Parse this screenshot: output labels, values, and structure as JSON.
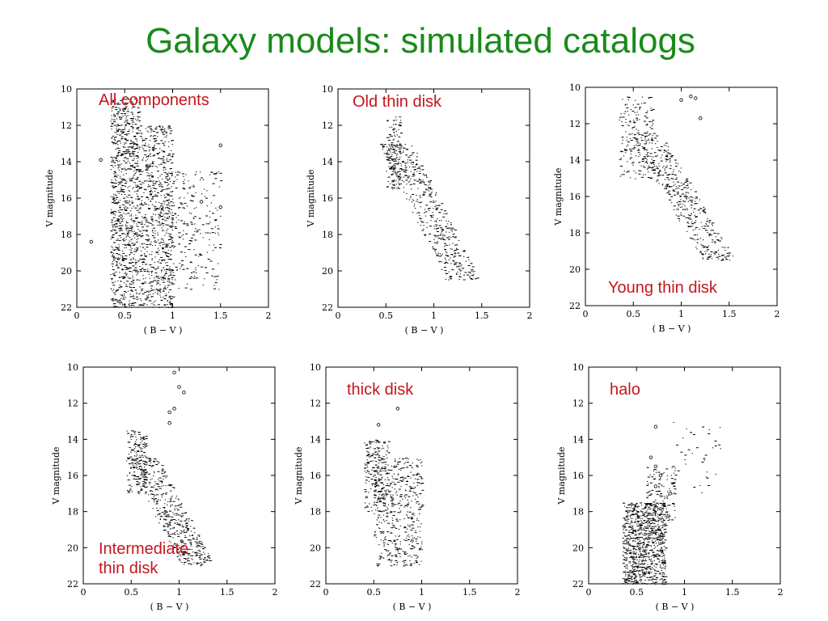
{
  "slide": {
    "title": "Galaxy models: simulated catalogs"
  },
  "colors": {
    "title": "#1a8a1a",
    "panel_label": "#c4161c",
    "marks": "#000000"
  },
  "chart_data": [
    {
      "type": "scatter",
      "label": "All components",
      "xlabel": "( B − V )",
      "ylabel": "V    magnitude",
      "xlim": [
        0,
        2
      ],
      "ylim": [
        22,
        10
      ],
      "xticks": [
        "0",
        "0.5",
        "1",
        "1.5",
        "2"
      ],
      "yticks": [
        "10",
        "12",
        "14",
        "16",
        "18",
        "20",
        "22"
      ],
      "grid": false,
      "clusters": [
        {
          "x": [
            0.35,
            0.65
          ],
          "y": [
            10.5,
            22
          ],
          "n": 900
        },
        {
          "x": [
            0.65,
            1.0
          ],
          "y": [
            12,
            22
          ],
          "n": 700
        },
        {
          "x": [
            0.9,
            1.5
          ],
          "y": [
            14.5,
            21
          ],
          "n": 260
        }
      ],
      "stars": [
        [
          1.5,
          13.1
        ],
        [
          1.5,
          16.5
        ],
        [
          0.15,
          18.4
        ],
        [
          0.25,
          13.9
        ],
        [
          1.3,
          16.2
        ],
        [
          0.9,
          12.3
        ]
      ]
    },
    {
      "type": "scatter",
      "label": "Old thin disk",
      "xlabel": "( B − V )",
      "ylabel": "V    magnitude",
      "xlim": [
        0,
        2
      ],
      "ylim": [
        22,
        10
      ],
      "xticks": [
        "0",
        "0.5",
        "1",
        "1.5",
        "2"
      ],
      "yticks": [
        "10",
        "12",
        "14",
        "16",
        "18",
        "20",
        "22"
      ],
      "grid": false,
      "clusters": [
        {
          "x": [
            0.5,
            0.65
          ],
          "y": [
            11.5,
            15.5
          ],
          "n": 140
        },
        {
          "x": [
            0.6,
            1.3
          ],
          "y": [
            13,
            20.5
          ],
          "n": 460,
          "slope": true
        }
      ],
      "stars": []
    },
    {
      "type": "scatter",
      "label": "Young thin disk",
      "xlabel": "( B − V )",
      "ylabel": "V    magnitude",
      "xlim": [
        0,
        2
      ],
      "ylim": [
        22,
        10
      ],
      "xticks": [
        "0",
        "0.5",
        "1",
        "1.5",
        "2"
      ],
      "yticks": [
        "10",
        "12",
        "14",
        "16",
        "18",
        "20",
        "22"
      ],
      "grid": false,
      "clusters": [
        {
          "x": [
            0.35,
            0.7
          ],
          "y": [
            10.5,
            15
          ],
          "n": 180
        },
        {
          "x": [
            0.6,
            1.4
          ],
          "y": [
            12.5,
            19.5
          ],
          "n": 420,
          "slope": true
        }
      ],
      "stars": [
        [
          1.0,
          10.7
        ],
        [
          1.1,
          10.5
        ],
        [
          1.2,
          11.7
        ],
        [
          1.15,
          10.6
        ]
      ]
    },
    {
      "type": "scatter",
      "label": "Intermediate thin disk",
      "label_lines": [
        "Intermediate",
        "thin disk"
      ],
      "xlabel": "( B − V )",
      "ylabel": "V    magnitude",
      "xlim": [
        0,
        2
      ],
      "ylim": [
        22,
        10
      ],
      "xticks": [
        "0",
        "0.5",
        "1",
        "1.5",
        "2"
      ],
      "yticks": [
        "10",
        "12",
        "14",
        "16",
        "18",
        "20",
        "22"
      ],
      "grid": false,
      "clusters": [
        {
          "x": [
            0.45,
            0.65
          ],
          "y": [
            13.5,
            17
          ],
          "n": 180
        },
        {
          "x": [
            0.6,
            1.2
          ],
          "y": [
            15,
            21
          ],
          "n": 460,
          "slope": true
        }
      ],
      "stars": [
        [
          0.95,
          10.3
        ],
        [
          1.0,
          11.1
        ],
        [
          1.05,
          11.4
        ],
        [
          0.95,
          12.3
        ],
        [
          0.9,
          12.5
        ],
        [
          0.9,
          13.1
        ]
      ]
    },
    {
      "type": "scatter",
      "label": "thick disk",
      "xlabel": "( B − V )",
      "ylabel": "V    magnitude",
      "xlim": [
        0,
        2
      ],
      "ylim": [
        22,
        10
      ],
      "xticks": [
        "0",
        "0.5",
        "1",
        "1.5",
        "2"
      ],
      "yticks": [
        "10",
        "12",
        "14",
        "16",
        "18",
        "20",
        "22"
      ],
      "grid": false,
      "clusters": [
        {
          "x": [
            0.4,
            0.65
          ],
          "y": [
            14,
            18
          ],
          "n": 200
        },
        {
          "x": [
            0.5,
            1.0
          ],
          "y": [
            15,
            21
          ],
          "n": 460
        }
      ],
      "stars": [
        [
          0.75,
          12.3
        ],
        [
          0.55,
          13.2
        ]
      ]
    },
    {
      "type": "scatter",
      "label": "halo",
      "xlabel": "( B − V )",
      "ylabel": "V    magnitude",
      "xlim": [
        0,
        2
      ],
      "ylim": [
        22,
        10
      ],
      "xticks": [
        "0",
        "0.5",
        "1",
        "1.5",
        "2"
      ],
      "yticks": [
        "10",
        "12",
        "14",
        "16",
        "18",
        "20",
        "22"
      ],
      "grid": false,
      "clusters": [
        {
          "x": [
            0.35,
            0.8
          ],
          "y": [
            17.5,
            22
          ],
          "n": 900
        },
        {
          "x": [
            0.6,
            0.9
          ],
          "y": [
            15.5,
            18.5
          ],
          "n": 120
        },
        {
          "x": [
            0.8,
            1.4
          ],
          "y": [
            13,
            17
          ],
          "n": 40
        }
      ],
      "stars": [
        [
          0.7,
          13.3
        ],
        [
          0.65,
          15.0
        ],
        [
          0.7,
          15.5
        ],
        [
          0.75,
          16.0
        ],
        [
          0.7,
          16.6
        ],
        [
          0.85,
          17.0
        ]
      ]
    }
  ]
}
